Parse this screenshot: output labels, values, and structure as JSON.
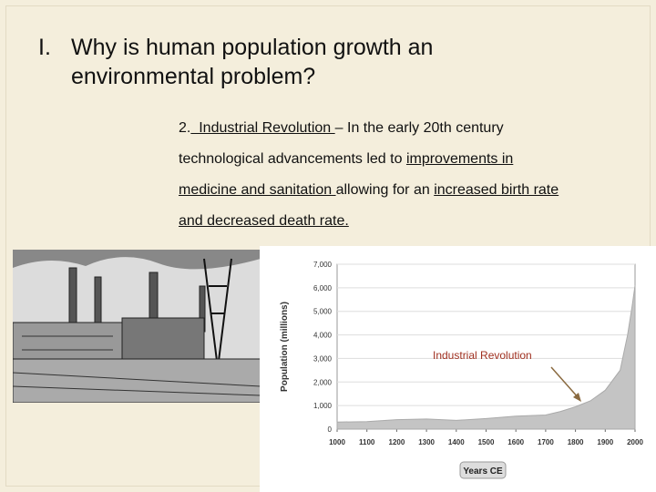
{
  "heading": {
    "number": "I.",
    "lines": [
      "Why is human population growth an",
      "environmental problem?"
    ]
  },
  "body": {
    "lines": [
      [
        {
          "text": "2.",
          "underline": false
        },
        {
          "text": "  Industrial Revolution ",
          "underline": true
        },
        {
          "text": "– In the early 20th century",
          "underline": false
        }
      ],
      [
        {
          "text": "technological advancements led to ",
          "underline": false
        },
        {
          "text": "improvements in",
          "underline": true
        }
      ],
      [
        {
          "text": "medicine and sanitation ",
          "underline": true
        },
        {
          "text": "allowing for an ",
          "underline": false
        },
        {
          "text": "increased birth rate",
          "underline": true
        }
      ],
      [
        {
          "text": "and decreased death rate.",
          "underline": true
        }
      ],
      [
        {
          "text": ".",
          "underline": false
        }
      ]
    ]
  },
  "chart": {
    "type": "area",
    "ylabel": "Population (millions)",
    "xlabel": "Years CE",
    "annotation": "Industrial Revolution",
    "color": "#c4c4c4",
    "x": [
      1000,
      1100,
      1200,
      1300,
      1400,
      1500,
      1600,
      1700,
      1750,
      1800,
      1850,
      1900,
      1950,
      1975,
      1990,
      2000
    ],
    "values": [
      300,
      320,
      400,
      430,
      370,
      450,
      550,
      600,
      750,
      950,
      1200,
      1650,
      2500,
      4000,
      5200,
      6100
    ],
    "xlim": [
      1000,
      2000
    ],
    "xticks": [
      1000,
      1100,
      1200,
      1300,
      1400,
      1500,
      1600,
      1700,
      1800,
      1900,
      2000
    ],
    "ylim": [
      0,
      7000
    ],
    "yticks": [
      0,
      {
        "value": 1000,
        "label": "1,000"
      },
      {
        "value": 2000,
        "label": "2,000"
      },
      {
        "value": 3000,
        "label": "3,000"
      },
      {
        "value": 4000,
        "label": "4,000"
      },
      {
        "value": 5000,
        "label": "5,000"
      },
      {
        "value": 6000,
        "label": "6,000"
      },
      {
        "value": 7000,
        "label": "7,000"
      }
    ],
    "grid": true
  }
}
